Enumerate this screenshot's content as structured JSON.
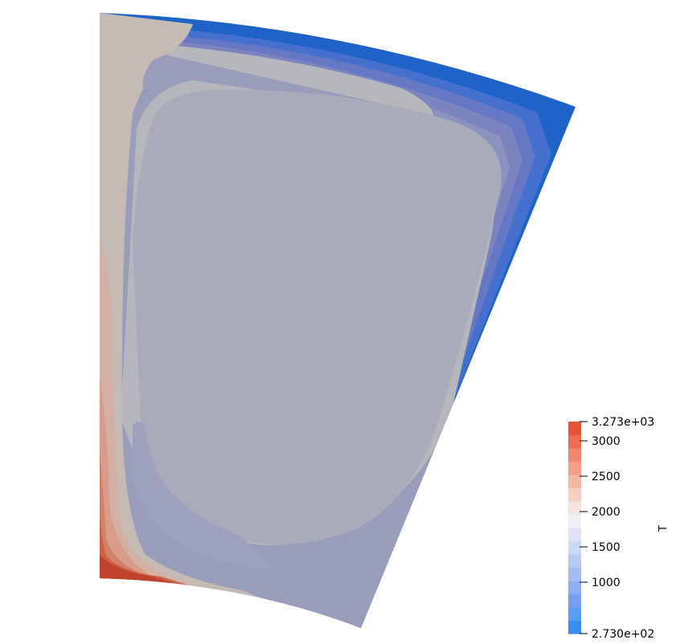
{
  "scalar_bar": {
    "variable": "T",
    "range": [
      273.0,
      3273.0
    ],
    "labels": [
      "3.273e+03",
      "3000",
      "2500",
      "2000",
      "1500",
      "1000",
      "2.730e+02"
    ],
    "label_values": [
      3273,
      3000,
      2500,
      2000,
      1500,
      1000,
      273
    ]
  },
  "colors": {
    "band_colors": [
      "#3a8cf0",
      "#5a9cf2",
      "#769ff0",
      "#8eaef2",
      "#a3bcf3",
      "#b8c9f4",
      "#ccd6f5",
      "#dfe4f5",
      "#efeff4",
      "#f4e4df",
      "#f5cfc4",
      "#f5b8a6",
      "#f3a08a",
      "#f08870",
      "#eb6d52",
      "#e4543a"
    ]
  }
}
